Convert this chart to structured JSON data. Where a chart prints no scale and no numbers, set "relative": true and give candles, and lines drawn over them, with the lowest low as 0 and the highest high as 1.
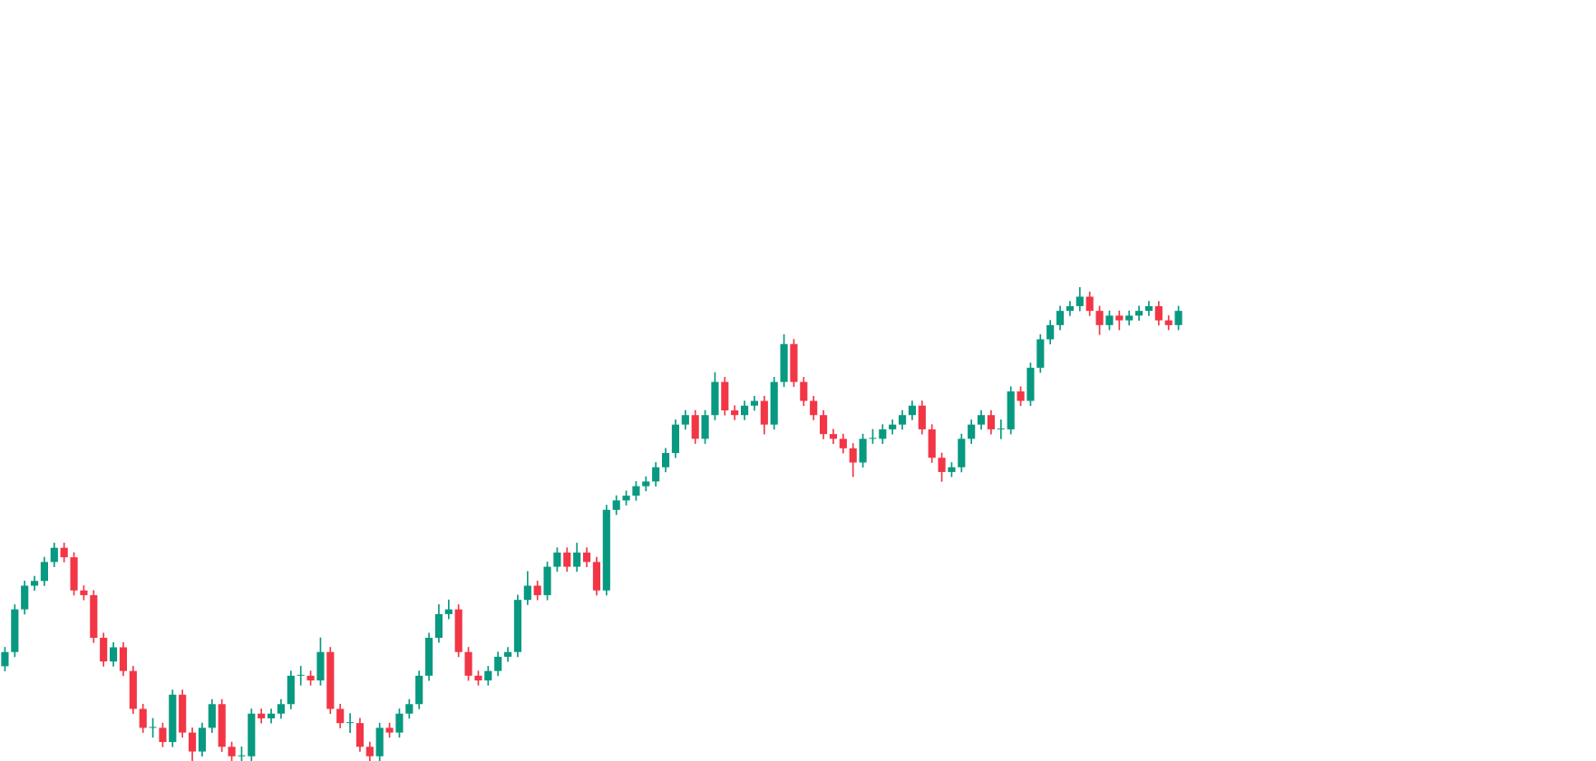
{
  "chart_data": {
    "type": "candlestick",
    "relative": true,
    "categories": [
      null,
      null,
      null,
      null,
      null,
      null,
      null,
      null,
      null,
      null,
      null,
      null,
      null,
      null,
      null,
      null,
      null,
      null,
      null,
      null,
      null,
      null,
      null,
      null,
      null,
      null,
      null,
      null,
      null,
      null,
      null,
      null,
      null,
      null,
      null,
      null,
      null,
      null,
      null,
      null,
      null,
      null,
      null,
      null,
      null,
      null,
      null,
      null,
      null,
      null,
      null,
      null,
      null,
      null,
      null,
      null,
      null,
      null,
      null,
      null,
      null,
      null,
      null,
      null,
      null,
      null,
      null,
      null,
      null,
      null,
      null,
      null,
      null,
      null,
      null,
      null,
      null,
      null,
      null,
      null,
      null,
      null,
      null,
      null,
      null,
      null,
      null,
      null,
      null,
      null,
      null,
      null,
      null,
      null,
      null,
      null,
      null,
      null,
      null,
      null,
      null,
      null,
      null,
      null,
      null,
      null,
      null,
      null,
      null,
      null,
      null,
      null,
      null,
      null,
      null,
      null,
      null,
      null,
      null,
      null
    ],
    "ohlc": [
      [
        0.2,
        0.24,
        0.19,
        0.23
      ],
      [
        0.23,
        0.33,
        0.22,
        0.32
      ],
      [
        0.32,
        0.38,
        0.31,
        0.37
      ],
      [
        0.37,
        0.39,
        0.36,
        0.38
      ],
      [
        0.38,
        0.43,
        0.37,
        0.42
      ],
      [
        0.42,
        0.46,
        0.41,
        0.45
      ],
      [
        0.45,
        0.46,
        0.42,
        0.43
      ],
      [
        0.43,
        0.44,
        0.35,
        0.36
      ],
      [
        0.36,
        0.37,
        0.34,
        0.35
      ],
      [
        0.35,
        0.36,
        0.25,
        0.26
      ],
      [
        0.26,
        0.27,
        0.2,
        0.21
      ],
      [
        0.21,
        0.25,
        0.2,
        0.24
      ],
      [
        0.24,
        0.25,
        0.18,
        0.19
      ],
      [
        0.19,
        0.2,
        0.1,
        0.11
      ],
      [
        0.11,
        0.12,
        0.06,
        0.07
      ],
      [
        0.07,
        0.09,
        0.05,
        0.07
      ],
      [
        0.07,
        0.08,
        0.03,
        0.04
      ],
      [
        0.04,
        0.15,
        0.03,
        0.14
      ],
      [
        0.14,
        0.15,
        0.05,
        0.06
      ],
      [
        0.06,
        0.07,
        0,
        0.02
      ],
      [
        0.02,
        0.08,
        0.01,
        0.07
      ],
      [
        0.07,
        0.13,
        0.06,
        0.12
      ],
      [
        0.12,
        0.13,
        0.02,
        0.03
      ],
      [
        0.03,
        0.04,
        0,
        0.01
      ],
      [
        0.01,
        0.03,
        0,
        0.01
      ],
      [
        0.01,
        0.11,
        0,
        0.1
      ],
      [
        0.1,
        0.11,
        0.08,
        0.09
      ],
      [
        0.09,
        0.11,
        0.08,
        0.1
      ],
      [
        0.1,
        0.13,
        0.09,
        0.12
      ],
      [
        0.12,
        0.19,
        0.11,
        0.18
      ],
      [
        0.18,
        0.2,
        0.16,
        0.18
      ],
      [
        0.18,
        0.19,
        0.16,
        0.17
      ],
      [
        0.17,
        0.26,
        0.16,
        0.23
      ],
      [
        0.23,
        0.24,
        0.1,
        0.11
      ],
      [
        0.11,
        0.12,
        0.07,
        0.08
      ],
      [
        0.08,
        0.1,
        0.06,
        0.08
      ],
      [
        0.08,
        0.09,
        0.02,
        0.03
      ],
      [
        0.03,
        0.04,
        0,
        0.01
      ],
      [
        0.01,
        0.08,
        0,
        0.07
      ],
      [
        0.07,
        0.08,
        0.05,
        0.06
      ],
      [
        0.06,
        0.11,
        0.05,
        0.1
      ],
      [
        0.1,
        0.13,
        0.09,
        0.12
      ],
      [
        0.12,
        0.19,
        0.11,
        0.18
      ],
      [
        0.18,
        0.27,
        0.17,
        0.26
      ],
      [
        0.26,
        0.33,
        0.25,
        0.31
      ],
      [
        0.31,
        0.34,
        0.3,
        0.32
      ],
      [
        0.32,
        0.33,
        0.22,
        0.23
      ],
      [
        0.23,
        0.24,
        0.17,
        0.18
      ],
      [
        0.18,
        0.19,
        0.16,
        0.17
      ],
      [
        0.17,
        0.2,
        0.16,
        0.19
      ],
      [
        0.19,
        0.23,
        0.18,
        0.22
      ],
      [
        0.22,
        0.24,
        0.21,
        0.23
      ],
      [
        0.23,
        0.35,
        0.22,
        0.34
      ],
      [
        0.34,
        0.4,
        0.33,
        0.37
      ],
      [
        0.37,
        0.38,
        0.34,
        0.35
      ],
      [
        0.35,
        0.42,
        0.34,
        0.41
      ],
      [
        0.41,
        0.45,
        0.4,
        0.44
      ],
      [
        0.44,
        0.45,
        0.4,
        0.41
      ],
      [
        0.41,
        0.46,
        0.4,
        0.44
      ],
      [
        0.44,
        0.45,
        0.41,
        0.42
      ],
      [
        0.42,
        0.43,
        0.35,
        0.36
      ],
      [
        0.36,
        0.54,
        0.35,
        0.53
      ],
      [
        0.53,
        0.56,
        0.52,
        0.55
      ],
      [
        0.55,
        0.57,
        0.54,
        0.56
      ],
      [
        0.56,
        0.59,
        0.55,
        0.58
      ],
      [
        0.58,
        0.6,
        0.57,
        0.59
      ],
      [
        0.59,
        0.63,
        0.58,
        0.62
      ],
      [
        0.62,
        0.66,
        0.61,
        0.65
      ],
      [
        0.65,
        0.72,
        0.64,
        0.71
      ],
      [
        0.71,
        0.74,
        0.7,
        0.73
      ],
      [
        0.73,
        0.74,
        0.67,
        0.68
      ],
      [
        0.68,
        0.74,
        0.67,
        0.73
      ],
      [
        0.73,
        0.82,
        0.72,
        0.8
      ],
      [
        0.8,
        0.81,
        0.73,
        0.74
      ],
      [
        0.74,
        0.75,
        0.72,
        0.73
      ],
      [
        0.73,
        0.76,
        0.72,
        0.75
      ],
      [
        0.75,
        0.77,
        0.74,
        0.76
      ],
      [
        0.76,
        0.77,
        0.69,
        0.71
      ],
      [
        0.71,
        0.81,
        0.7,
        0.8
      ],
      [
        0.8,
        0.9,
        0.79,
        0.88
      ],
      [
        0.88,
        0.89,
        0.79,
        0.8
      ],
      [
        0.8,
        0.81,
        0.75,
        0.76
      ],
      [
        0.76,
        0.77,
        0.72,
        0.73
      ],
      [
        0.73,
        0.74,
        0.68,
        0.69
      ],
      [
        0.69,
        0.7,
        0.67,
        0.68
      ],
      [
        0.68,
        0.69,
        0.65,
        0.66
      ],
      [
        0.66,
        0.67,
        0.6,
        0.63
      ],
      [
        0.63,
        0.69,
        0.62,
        0.68
      ],
      [
        0.68,
        0.7,
        0.67,
        0.68
      ],
      [
        0.68,
        0.71,
        0.67,
        0.7
      ],
      [
        0.7,
        0.72,
        0.69,
        0.71
      ],
      [
        0.71,
        0.74,
        0.7,
        0.73
      ],
      [
        0.73,
        0.76,
        0.72,
        0.75
      ],
      [
        0.75,
        0.76,
        0.69,
        0.7
      ],
      [
        0.7,
        0.71,
        0.63,
        0.64
      ],
      [
        0.64,
        0.65,
        0.59,
        0.61
      ],
      [
        0.61,
        0.63,
        0.6,
        0.62
      ],
      [
        0.62,
        0.69,
        0.61,
        0.68
      ],
      [
        0.68,
        0.72,
        0.67,
        0.71
      ],
      [
        0.71,
        0.74,
        0.7,
        0.73
      ],
      [
        0.73,
        0.74,
        0.69,
        0.7
      ],
      [
        0.7,
        0.72,
        0.68,
        0.7
      ],
      [
        0.7,
        0.79,
        0.69,
        0.78
      ],
      [
        0.78,
        0.79,
        0.75,
        0.76
      ],
      [
        0.76,
        0.84,
        0.75,
        0.83
      ],
      [
        0.83,
        0.9,
        0.82,
        0.89
      ],
      [
        0.89,
        0.93,
        0.88,
        0.92
      ],
      [
        0.92,
        0.96,
        0.91,
        0.95
      ],
      [
        0.95,
        0.97,
        0.94,
        0.96
      ],
      [
        0.96,
        1,
        0.95,
        0.98
      ],
      [
        0.98,
        0.99,
        0.94,
        0.95
      ],
      [
        0.95,
        0.96,
        0.9,
        0.92
      ],
      [
        0.92,
        0.95,
        0.91,
        0.94
      ],
      [
        0.94,
        0.95,
        0.91,
        0.93
      ],
      [
        0.93,
        0.95,
        0.92,
        0.94
      ],
      [
        0.94,
        0.96,
        0.93,
        0.95
      ],
      [
        0.95,
        0.97,
        0.94,
        0.96
      ],
      [
        0.96,
        0.97,
        0.92,
        0.93
      ],
      [
        0.93,
        0.94,
        0.91,
        0.92
      ],
      [
        0.92,
        0.96,
        0.91,
        0.95
      ]
    ]
  }
}
